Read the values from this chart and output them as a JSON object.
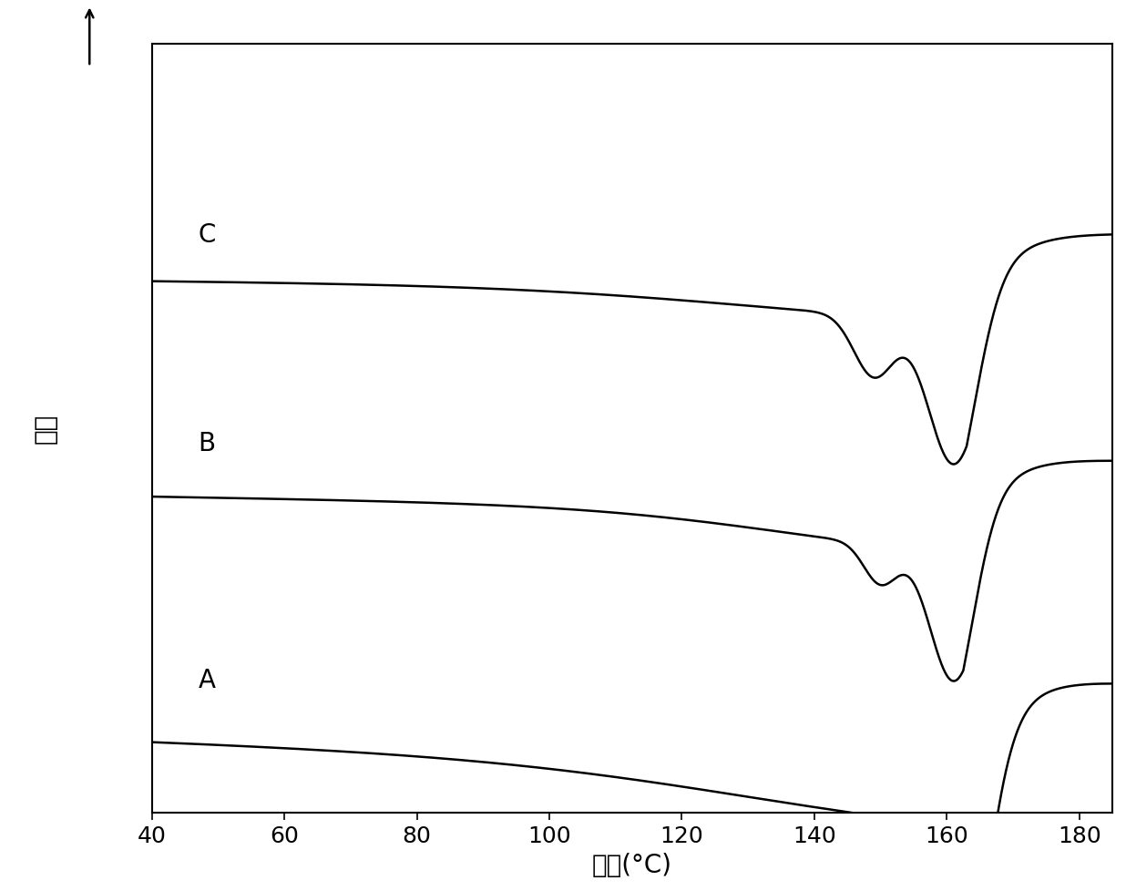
{
  "xlabel": "温度(°C)",
  "ylabel": "放热",
  "xlim": [
    40,
    185
  ],
  "ylim": [
    -0.02,
    1.05
  ],
  "xticks": [
    40,
    60,
    80,
    100,
    120,
    140,
    160,
    180
  ],
  "background_color": "#ffffff",
  "line_color": "#000000",
  "label_fontsize": 20,
  "axis_fontsize": 20,
  "tick_fontsize": 18,
  "curve_offsets": [
    0.08,
    0.42,
    0.72
  ],
  "peak_positions": {
    "A": {
      "main_mu": 162,
      "main_sigma": 4.0,
      "main_amp": 0.28,
      "beta_amp": 0.0
    },
    "B": {
      "main_mu": 161,
      "main_sigma": 3.5,
      "main_amp": 0.18,
      "beta_mu": 150,
      "beta_sigma": 2.5,
      "beta_amp": 0.055
    },
    "C": {
      "main_mu": 161,
      "main_sigma": 3.8,
      "main_amp": 0.2,
      "beta_mu": 149,
      "beta_sigma": 3.0,
      "beta_amp": 0.085
    }
  }
}
